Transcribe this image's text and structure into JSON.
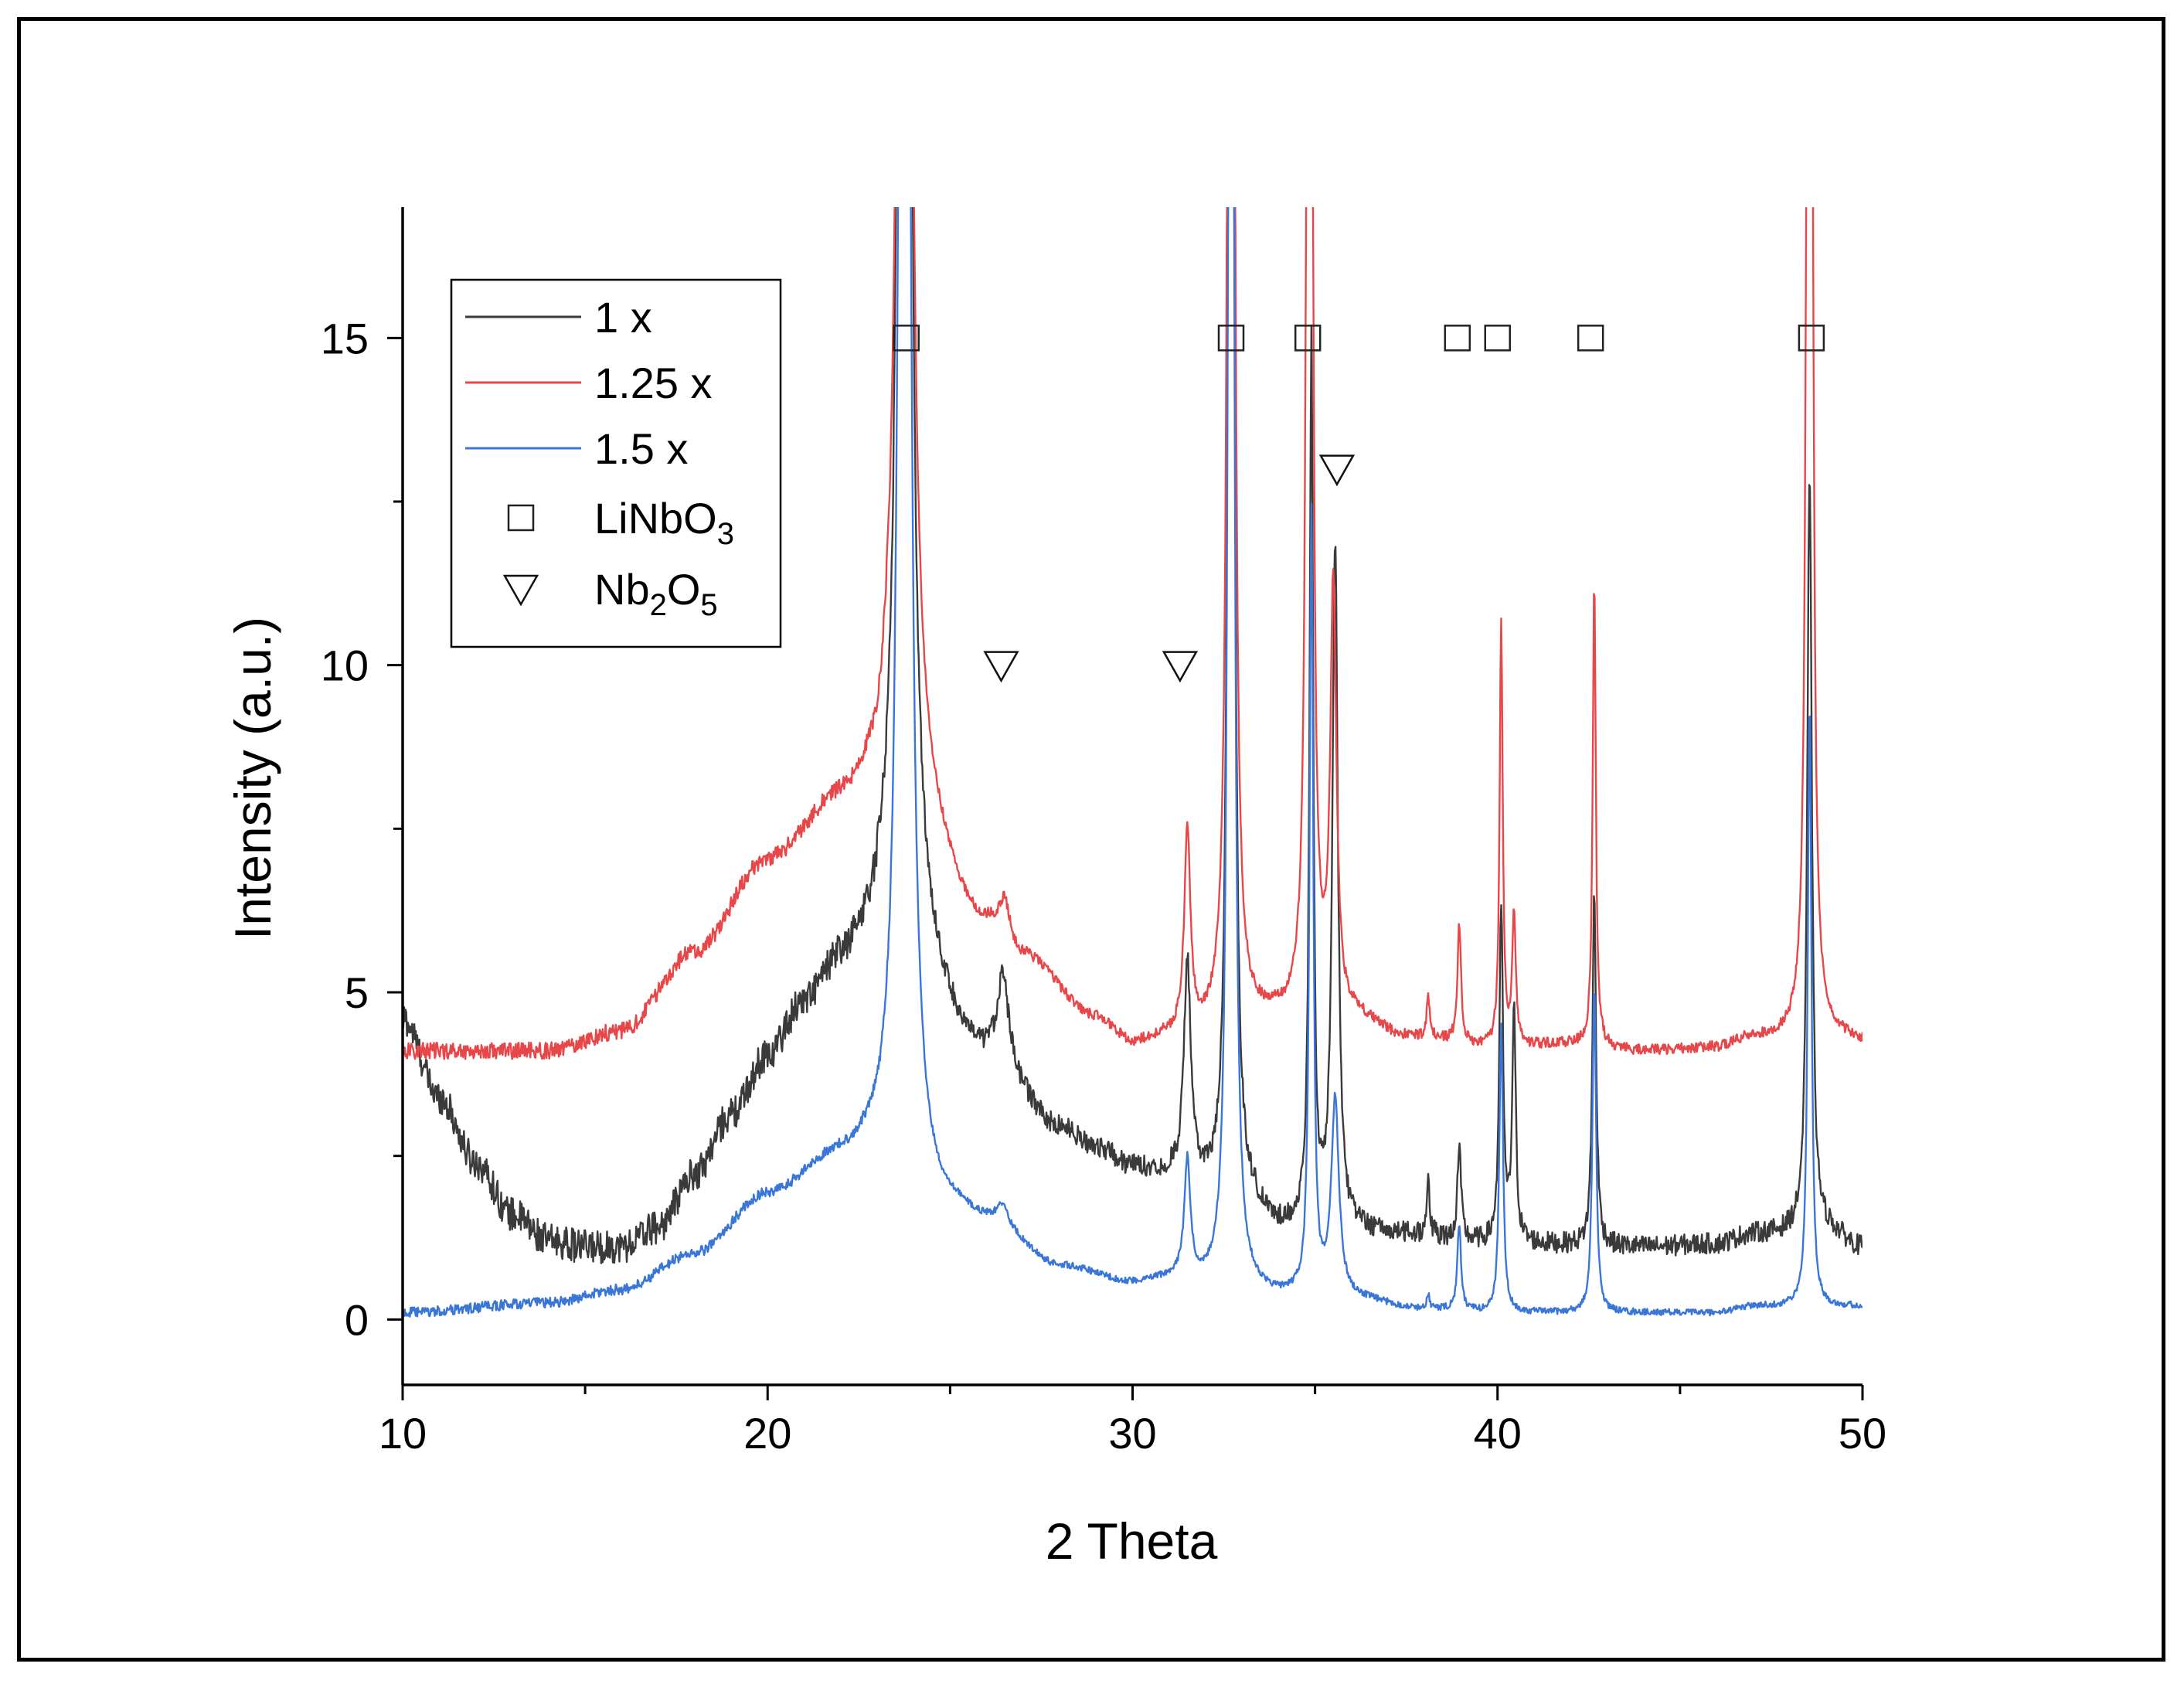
{
  "chart_data": {
    "type": "line",
    "xlabel": "2 Theta",
    "ylabel": "Intensity (a.u.)",
    "xlim": [
      10,
      50
    ],
    "ylim": [
      -1,
      17
    ],
    "xticks": [
      10,
      20,
      30,
      40,
      50
    ],
    "yticks": [
      0,
      5,
      10,
      15
    ],
    "xminor_step": 5,
    "yminor_step": 2.5,
    "legend_position": "top-left",
    "series": [
      {
        "name": "1 x",
        "color": "#3a3a3a",
        "noise": 0.32,
        "baseline": [
          [
            10,
            4.6
          ],
          [
            11,
            3.4
          ],
          [
            12,
            2.4
          ],
          [
            13,
            1.6
          ],
          [
            14,
            1.2
          ],
          [
            15,
            1.1
          ],
          [
            16,
            1.1
          ],
          [
            17,
            1.4
          ],
          [
            18,
            2.2
          ],
          [
            19,
            3.1
          ],
          [
            20,
            4.0
          ],
          [
            21,
            4.8
          ],
          [
            22,
            5.4
          ],
          [
            22.8,
            5.8
          ],
          [
            23.2,
            6.2
          ],
          [
            26,
            4.0
          ],
          [
            28,
            2.9
          ],
          [
            29,
            2.6
          ],
          [
            30,
            2.3
          ],
          [
            31,
            2.2
          ],
          [
            33,
            1.8
          ],
          [
            34,
            1.4
          ],
          [
            36,
            1.35
          ],
          [
            37,
            1.3
          ],
          [
            40,
            1.15
          ],
          [
            44,
            1.1
          ],
          [
            46,
            1.15
          ],
          [
            47,
            1.3
          ],
          [
            49,
            1.35
          ],
          [
            50,
            1.1
          ]
        ],
        "peaks": [
          [
            23.75,
            60,
            0.22
          ],
          [
            26.45,
            1.4,
            0.35
          ],
          [
            31.5,
            3.3,
            0.22
          ],
          [
            32.7,
            50,
            0.12
          ],
          [
            34.9,
            13.5,
            0.12
          ],
          [
            35.55,
            10.5,
            0.18
          ],
          [
            38.1,
            0.9,
            0.1
          ],
          [
            38.95,
            1.4,
            0.12
          ],
          [
            40.1,
            5.1,
            0.12
          ],
          [
            40.45,
            3.5,
            0.12
          ],
          [
            42.65,
            5.4,
            0.12
          ],
          [
            48.55,
            11.7,
            0.15
          ]
        ]
      },
      {
        "name": "1.25 x",
        "color": "#e8474a",
        "noise": 0.16,
        "baseline": [
          [
            10,
            4.1
          ],
          [
            14,
            4.1
          ],
          [
            16,
            4.4
          ],
          [
            18,
            5.6
          ],
          [
            20,
            7.0
          ],
          [
            22,
            7.9
          ],
          [
            23,
            8.2
          ],
          [
            23.3,
            8.6
          ],
          [
            26,
            6.0
          ],
          [
            27,
            5.5
          ],
          [
            29,
            4.6
          ],
          [
            30,
            4.2
          ],
          [
            31,
            4.3
          ],
          [
            34,
            4.6
          ],
          [
            36,
            4.6
          ],
          [
            37.5,
            4.3
          ],
          [
            40,
            4.15
          ],
          [
            42,
            4.2
          ],
          [
            44,
            4.1
          ],
          [
            46,
            4.15
          ],
          [
            47,
            4.3
          ],
          [
            49.5,
            4.3
          ],
          [
            50,
            4.25
          ]
        ],
        "peaks": [
          [
            23.75,
            60,
            0.22
          ],
          [
            26.5,
            0.6,
            0.35
          ],
          [
            31.5,
            3.1,
            0.2
          ],
          [
            32.7,
            60,
            0.12
          ],
          [
            34.85,
            60,
            0.1
          ],
          [
            35.5,
            6.5,
            0.2
          ],
          [
            38.1,
            0.6,
            0.1
          ],
          [
            38.95,
            1.8,
            0.12
          ],
          [
            40.1,
            6.5,
            0.1
          ],
          [
            40.45,
            2.0,
            0.12
          ],
          [
            42.65,
            7.2,
            0.1
          ],
          [
            48.55,
            60,
            0.1
          ]
        ]
      },
      {
        "name": "1.5 x",
        "color": "#3a76d8",
        "noise": 0.1,
        "baseline": [
          [
            10,
            0.1
          ],
          [
            14,
            0.25
          ],
          [
            16,
            0.45
          ],
          [
            18,
            1.0
          ],
          [
            20,
            1.9
          ],
          [
            22,
            2.5
          ],
          [
            23,
            2.7
          ],
          [
            23.3,
            2.8
          ],
          [
            25,
            1.7
          ],
          [
            26,
            1.5
          ],
          [
            28,
            0.8
          ],
          [
            30,
            0.55
          ],
          [
            31,
            0.6
          ],
          [
            33,
            0.45
          ],
          [
            34,
            0.35
          ],
          [
            36,
            0.3
          ],
          [
            38,
            0.15
          ],
          [
            40,
            0.1
          ],
          [
            44,
            0.1
          ],
          [
            46,
            0.1
          ],
          [
            47,
            0.2
          ],
          [
            50,
            0.2
          ]
        ],
        "peaks": [
          [
            23.75,
            60,
            0.2
          ],
          [
            26.45,
            0.3,
            0.3
          ],
          [
            31.5,
            1.8,
            0.2
          ],
          [
            32.7,
            50,
            0.12
          ],
          [
            34.9,
            12.0,
            0.12
          ],
          [
            35.55,
            3.0,
            0.25
          ],
          [
            38.1,
            0.2,
            0.1
          ],
          [
            38.95,
            1.3,
            0.12
          ],
          [
            40.1,
            4.4,
            0.12
          ],
          [
            42.65,
            5.0,
            0.12
          ],
          [
            48.55,
            9.3,
            0.12
          ]
        ]
      }
    ],
    "markers": [
      {
        "name": "LiNbO3",
        "shape": "square",
        "points": [
          [
            23.8,
            15
          ],
          [
            32.7,
            15
          ],
          [
            34.8,
            15
          ],
          [
            38.9,
            15
          ],
          [
            40.0,
            15
          ],
          [
            42.55,
            15
          ],
          [
            48.6,
            15
          ]
        ]
      },
      {
        "name": "Nb2O5",
        "shape": "triangle-down",
        "points": [
          [
            26.4,
            10
          ],
          [
            31.3,
            10
          ],
          [
            35.6,
            13
          ]
        ]
      }
    ],
    "legend": [
      {
        "kind": "line",
        "label": "1 x",
        "color": "#3a3a3a"
      },
      {
        "kind": "line",
        "label": "1.25 x",
        "color": "#e8474a"
      },
      {
        "kind": "line",
        "label": "1.5 x",
        "color": "#3a76d8"
      },
      {
        "kind": "square",
        "label": "LiNbO",
        "subscripts": [
          "3"
        ]
      },
      {
        "kind": "triangle",
        "label": "Nb",
        "mid": "O",
        "subscripts": [
          "2",
          "5"
        ]
      }
    ]
  }
}
